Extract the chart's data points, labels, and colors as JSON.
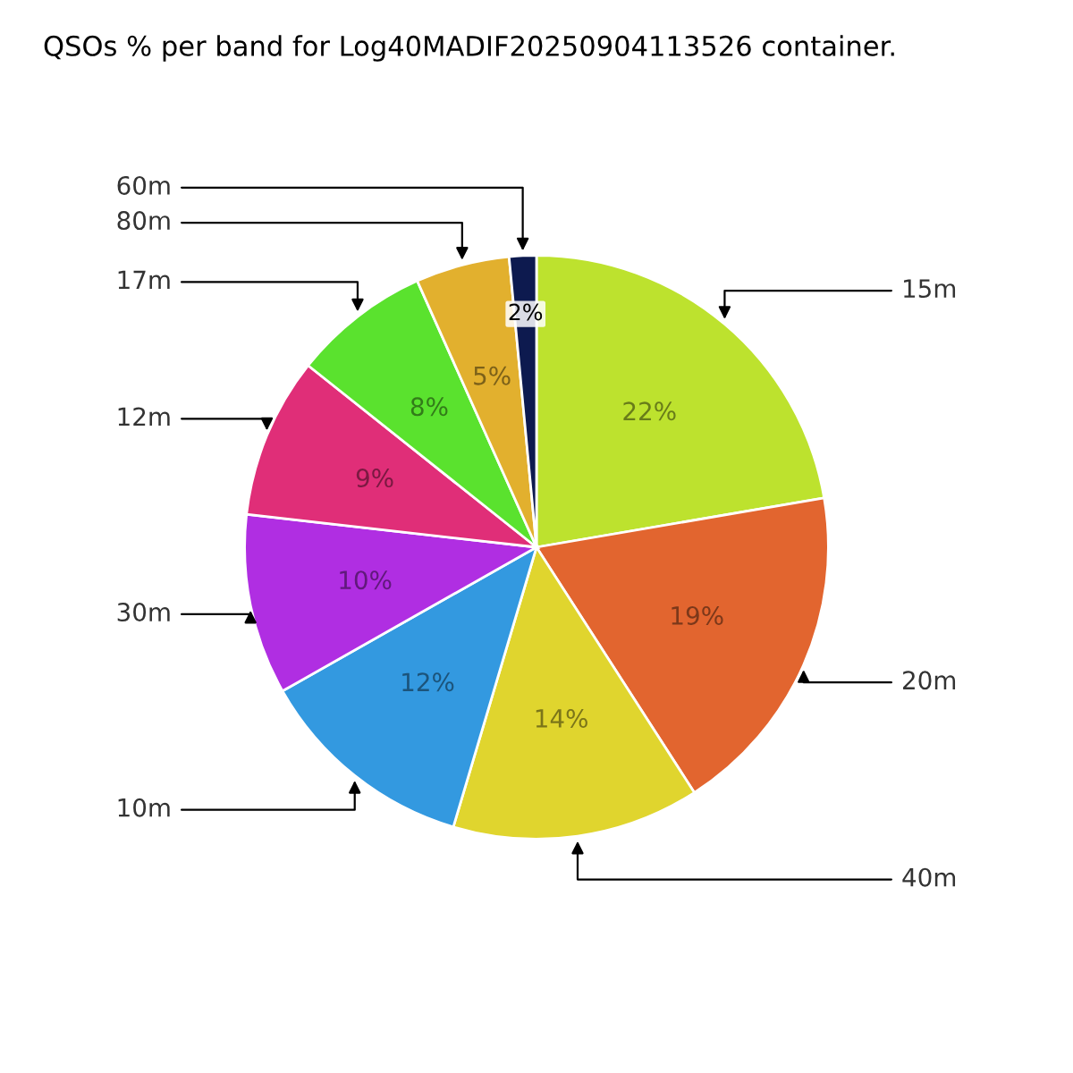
{
  "chart_data": {
    "type": "pie",
    "title": "QSOs % per band for Log40MADIF20250904113526 container.",
    "categories": [
      "15m",
      "20m",
      "40m",
      "10m",
      "30m",
      "12m",
      "17m",
      "80m",
      "60m"
    ],
    "values": [
      22.3,
      18.6,
      13.7,
      12.2,
      10.0,
      8.9,
      7.6,
      5.2,
      1.5
    ],
    "value_labels": [
      "22%",
      "19%",
      "14%",
      "12%",
      "10%",
      "9%",
      "8%",
      "5%",
      "2%"
    ],
    "colors": [
      "#bde22e",
      "#e2652f",
      "#e0d52e",
      "#3399e0",
      "#b02ee2",
      "#e02e78",
      "#5ae22e",
      "#e2b02e",
      "#0d1a4f"
    ],
    "legend": false
  }
}
